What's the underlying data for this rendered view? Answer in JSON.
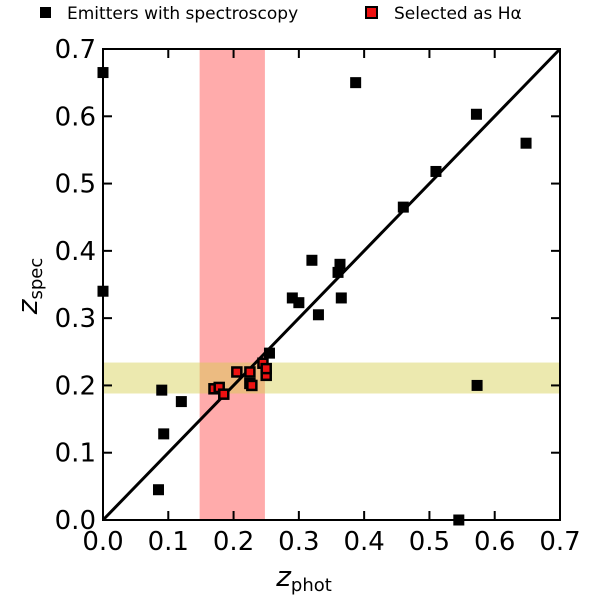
{
  "chart_data": {
    "type": "scatter",
    "title": "",
    "xlabel": {
      "main": "z",
      "sub": "phot"
    },
    "ylabel": {
      "main": "z",
      "sub": "spec"
    },
    "xlim": [
      0.0,
      0.7
    ],
    "ylim": [
      0.0,
      0.7
    ],
    "xticks": [
      "0.0",
      "0.1",
      "0.2",
      "0.3",
      "0.4",
      "0.5",
      "0.6",
      "0.7"
    ],
    "yticks": [
      "0.0",
      "0.1",
      "0.2",
      "0.3",
      "0.4",
      "0.5",
      "0.6",
      "0.7"
    ],
    "grid": false,
    "legend_placement": "top, outside plot",
    "reference_line": {
      "label": "",
      "points": [
        [
          0.0,
          0.0
        ],
        [
          0.7,
          0.7
        ]
      ],
      "color": "#000000"
    },
    "bands": [
      {
        "axis": "x",
        "range": [
          0.148,
          0.248
        ],
        "color": "#ff6666",
        "opacity": 0.55
      },
      {
        "axis": "y",
        "range": [
          0.188,
          0.234
        ],
        "color": "#d4cf4d",
        "opacity": 0.45
      }
    ],
    "series": [
      {
        "name": "Emitters with spectroscopy",
        "marker": "square",
        "color": "#000000",
        "points": [
          [
            0.0,
            0.665
          ],
          [
            0.0,
            0.34
          ],
          [
            0.085,
            0.045
          ],
          [
            0.09,
            0.193
          ],
          [
            0.093,
            0.128
          ],
          [
            0.12,
            0.176
          ],
          [
            0.255,
            0.248
          ],
          [
            0.29,
            0.33
          ],
          [
            0.3,
            0.323
          ],
          [
            0.32,
            0.386
          ],
          [
            0.33,
            0.305
          ],
          [
            0.36,
            0.368
          ],
          [
            0.363,
            0.38
          ],
          [
            0.365,
            0.33
          ],
          [
            0.387,
            0.65
          ],
          [
            0.46,
            0.465
          ],
          [
            0.51,
            0.518
          ],
          [
            0.545,
            0.0
          ],
          [
            0.572,
            0.603
          ],
          [
            0.573,
            0.2
          ],
          [
            0.648,
            0.56
          ]
        ]
      },
      {
        "name": "Selected as Hα",
        "marker": "square",
        "color": "#000000",
        "fill": "#ee1111",
        "points": [
          [
            0.17,
            0.195
          ],
          [
            0.178,
            0.197
          ],
          [
            0.185,
            0.187
          ],
          [
            0.205,
            0.22
          ],
          [
            0.225,
            0.22
          ],
          [
            0.225,
            0.203
          ],
          [
            0.228,
            0.2
          ],
          [
            0.245,
            0.233
          ],
          [
            0.25,
            0.215
          ],
          [
            0.25,
            0.225
          ]
        ]
      }
    ]
  }
}
